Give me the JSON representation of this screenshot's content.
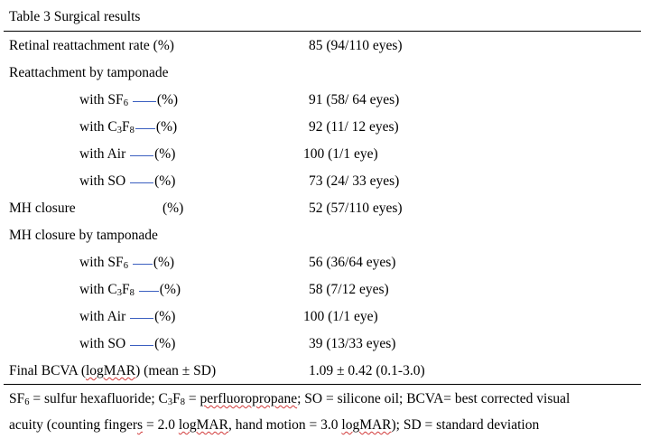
{
  "caption": "Table 3 Surgical results",
  "rows": [
    {
      "label": "Retinal reattachment rate (%)",
      "value": "85 (94/110 eyes)"
    },
    {
      "label": "Reattachment by tamponade",
      "value": ""
    },
    {
      "label": "with SF",
      "label_sub": "6",
      "pct": "(%)",
      "value": "91 (58/ 64 eyes)"
    },
    {
      "label": "with C",
      "label_sub": "3",
      "label_mid": "F",
      "label_sub2": "8",
      "pct": "(%)",
      "value": "92 (11/ 12 eyes)"
    },
    {
      "label": "with Air",
      "pct": "(%)",
      "value": "100 (1/1 eye)"
    },
    {
      "label": "with SO",
      "pct": "(%)",
      "value": "73 (24/ 33 eyes)"
    },
    {
      "label": "MH closure",
      "pct": "(%)",
      "value": "52 (57/110 eyes)"
    },
    {
      "label": "MH closure by tamponade",
      "value": ""
    },
    {
      "label": "with SF",
      "label_sub": "6",
      "pct": "(%)",
      "value": "56 (36/64 eyes)"
    },
    {
      "label": "with C",
      "label_sub": "3",
      "label_mid": "F",
      "label_sub2": "8",
      "pct": "(%)",
      "value": "58 (7/12 eyes)"
    },
    {
      "label": "with Air",
      "pct": "(%)",
      "value": "100 (1/1 eye)"
    },
    {
      "label": "with SO",
      "pct": "(%)",
      "value": "39 (13/33 eyes)"
    },
    {
      "label_a": "Final BCVA (",
      "label_b": "logMAR",
      "label_c": ") (mean ± SD)",
      "value": "1.09 ± 0.42 (0.1-3.0)"
    }
  ],
  "footnote": {
    "line1_a": "SF",
    "line1_sub1": "6",
    "line1_b": " = sulfur hexafluoride; C",
    "line1_sub2": "3",
    "line1_c": "F",
    "line1_sub3": "8",
    "line1_d": " = ",
    "line1_e": "perfluoropropane",
    "line1_f": "; SO = silicone oil; BCVA= best corrected visual",
    "line2_a": "acuity (counting finger",
    "line2_b": "s",
    "line2_c": " = 2.0 ",
    "line2_d": "logMAR",
    "line2_e": ", hand motion = 3.0 ",
    "line2_f": "logMAR",
    "line2_g": ");",
    "line2_h": " SD = standard deviation"
  }
}
